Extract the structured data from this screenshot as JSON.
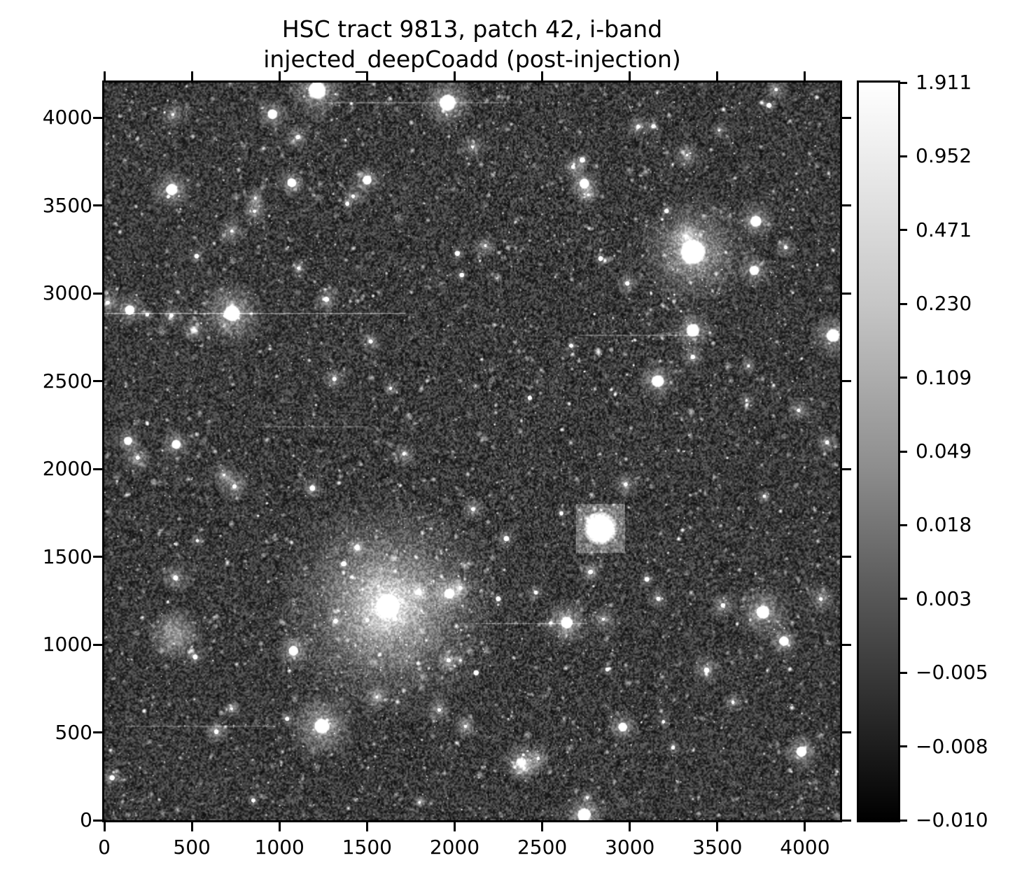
{
  "figure": {
    "title_line1": "HSC tract 9813, patch 42, i-band",
    "title_line2": "injected_deepCoadd (post-injection)"
  },
  "chart_data": {
    "type": "heatmap",
    "subtype": "grayscale astronomical coadd image with injected sources",
    "title": "HSC tract 9813, patch 42, i-band\ninjected_deepCoadd (post-injection)",
    "xlabel": "",
    "ylabel": "",
    "grid": false,
    "x_range": [
      0,
      4200
    ],
    "y_range": [
      0,
      4200
    ],
    "x_tick_values": [
      0,
      500,
      1000,
      1500,
      2000,
      2500,
      3000,
      3500,
      4000
    ],
    "x_tick_labels": [
      "0",
      "500",
      "1000",
      "1500",
      "2000",
      "2500",
      "3000",
      "3500",
      "4000"
    ],
    "y_tick_values": [
      0,
      500,
      1000,
      1500,
      2000,
      2500,
      3000,
      3500,
      4000
    ],
    "y_tick_labels": [
      "0",
      "500",
      "1000",
      "1500",
      "2000",
      "2500",
      "3000",
      "3500",
      "4000"
    ],
    "colormap": {
      "name": "gray",
      "top_hex": "#ffffff",
      "bottom_hex": "#000000"
    },
    "colorbar": {
      "position": "right",
      "vmax": 1.911,
      "vmin": -0.01,
      "scale": "nonlinear (asinh/log stretch)",
      "tick_labels": [
        "1.911",
        "0.952",
        "0.471",
        "0.230",
        "0.109",
        "0.049",
        "0.018",
        "0.003",
        "−0.005",
        "−0.008",
        "−0.010"
      ]
    },
    "background": {
      "appearance": "dark speckled noise densely filled with faint stars and small fuzzy galaxies",
      "mean_hex": "#3f3f3f"
    },
    "notable_sources": [
      {
        "x": 1620,
        "y": 1220,
        "core_r": 70,
        "halo_r": 660,
        "peak": 0.95,
        "kind": "cD-galaxy"
      },
      {
        "x": 3360,
        "y": 3235,
        "core_r": 75,
        "halo_r": 330,
        "peak": 1.0,
        "kind": "star"
      },
      {
        "x": 2833,
        "y": 1661,
        "core_r": 100,
        "halo_r": 140,
        "peak": 1.0,
        "kind": "boxy-injected"
      },
      {
        "x": 730,
        "y": 2885,
        "core_r": 48,
        "halo_r": 200,
        "peak": 1.0,
        "kind": "star"
      },
      {
        "x": 1960,
        "y": 4085,
        "core_r": 50,
        "halo_r": 160,
        "peak": 1.0,
        "kind": "star"
      },
      {
        "x": 1215,
        "y": 4155,
        "core_r": 55,
        "halo_r": 170,
        "peak": 1.0,
        "kind": "star"
      },
      {
        "x": 1243,
        "y": 535,
        "core_r": 45,
        "halo_r": 210,
        "peak": 0.95,
        "kind": "star"
      },
      {
        "x": 2640,
        "y": 1125,
        "core_r": 36,
        "halo_r": 150,
        "peak": 0.95,
        "kind": "star"
      },
      {
        "x": 3760,
        "y": 1185,
        "core_r": 40,
        "halo_r": 170,
        "peak": 0.95,
        "kind": "star"
      },
      {
        "x": 3360,
        "y": 2790,
        "core_r": 40,
        "halo_r": 135,
        "peak": 0.9,
        "kind": "star"
      },
      {
        "x": 3160,
        "y": 2500,
        "core_r": 38,
        "halo_r": 125,
        "peak": 0.9,
        "kind": "star"
      },
      {
        "x": 1970,
        "y": 1290,
        "core_r": 30,
        "halo_r": 110,
        "peak": 0.9,
        "kind": "star"
      },
      {
        "x": 385,
        "y": 3590,
        "core_r": 35,
        "halo_r": 130,
        "peak": 0.9,
        "kind": "star"
      },
      {
        "x": 2740,
        "y": 3625,
        "core_r": 30,
        "halo_r": 105,
        "peak": 0.85,
        "kind": "star"
      },
      {
        "x": 1070,
        "y": 3630,
        "core_r": 28,
        "halo_r": 95,
        "peak": 0.85,
        "kind": "star"
      },
      {
        "x": 1500,
        "y": 3645,
        "core_r": 28,
        "halo_r": 95,
        "peak": 0.85,
        "kind": "star"
      },
      {
        "x": 2740,
        "y": 30,
        "core_r": 42,
        "halo_r": 140,
        "peak": 0.95,
        "kind": "star"
      },
      {
        "x": 3980,
        "y": 390,
        "core_r": 32,
        "halo_r": 115,
        "peak": 0.9,
        "kind": "star"
      },
      {
        "x": 4160,
        "y": 2760,
        "core_r": 40,
        "halo_r": 135,
        "peak": 0.9,
        "kind": "star"
      },
      {
        "x": 1080,
        "y": 965,
        "core_r": 30,
        "halo_r": 105,
        "peak": 0.85,
        "kind": "star"
      },
      {
        "x": 3880,
        "y": 1020,
        "core_r": 30,
        "halo_r": 105,
        "peak": 0.85,
        "kind": "star"
      },
      {
        "x": 410,
        "y": 2140,
        "core_r": 28,
        "halo_r": 100,
        "peak": 0.85,
        "kind": "star"
      },
      {
        "x": 135,
        "y": 2160,
        "core_r": 26,
        "halo_r": 90,
        "peak": 0.8,
        "kind": "star"
      },
      {
        "x": 2960,
        "y": 530,
        "core_r": 28,
        "halo_r": 100,
        "peak": 0.85,
        "kind": "star"
      },
      {
        "x": 960,
        "y": 4020,
        "core_r": 30,
        "halo_r": 105,
        "peak": 0.85,
        "kind": "star"
      },
      {
        "x": 3720,
        "y": 3410,
        "core_r": 34,
        "halo_r": 120,
        "peak": 0.9,
        "kind": "star"
      },
      {
        "x": 3710,
        "y": 3130,
        "core_r": 30,
        "halo_r": 105,
        "peak": 0.85,
        "kind": "star"
      },
      {
        "x": 145,
        "y": 2905,
        "core_r": 30,
        "halo_r": 105,
        "peak": 0.85,
        "kind": "star"
      },
      {
        "x": 404,
        "y": 1060,
        "core_r": 28,
        "halo_r": 160,
        "peak": 0.45,
        "kind": "diffuse"
      },
      {
        "x": 2380,
        "y": 330,
        "core_r": 32,
        "halo_r": 115,
        "peak": 0.8,
        "kind": "fuzzy"
      },
      {
        "x": 512,
        "y": 2790,
        "core_r": 26,
        "halo_r": 80,
        "peak": 0.7,
        "kind": "fuzzy"
      }
    ],
    "streaks": [
      {
        "y": 2885,
        "x1": 0,
        "x2": 1720,
        "alpha": 0.28
      },
      {
        "y": 4085,
        "x1": 1250,
        "x2": 2300,
        "alpha": 0.2
      },
      {
        "y": 2760,
        "x1": 2700,
        "x2": 3400,
        "alpha": 0.2
      },
      {
        "y": 1120,
        "x1": 2150,
        "x2": 2760,
        "alpha": 0.22
      },
      {
        "y": 535,
        "x1": 120,
        "x2": 980,
        "alpha": 0.18
      },
      {
        "y": 2240,
        "x1": 860,
        "x2": 1500,
        "alpha": 0.16
      }
    ],
    "render": {
      "seed": 20240913,
      "faint_sources": 3300,
      "fuzzy_galaxies": 850,
      "bright_stars": 90
    }
  }
}
